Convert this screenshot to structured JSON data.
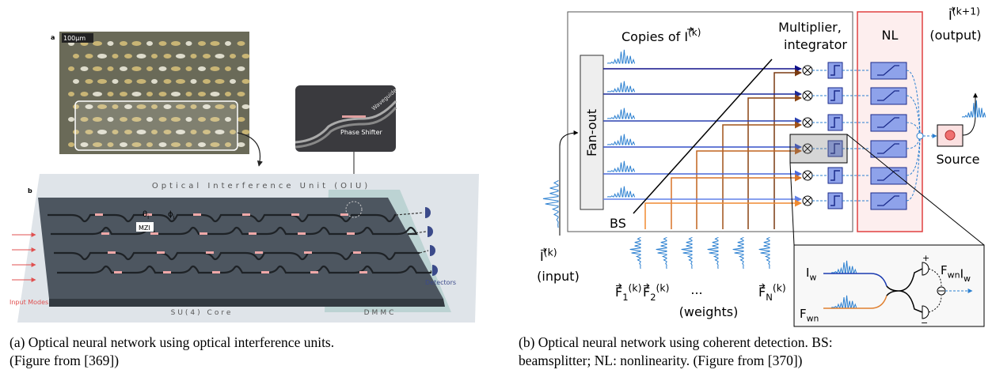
{
  "panel_a": {
    "label_a": "a",
    "scale": "100μm",
    "label_b": "b",
    "oiu_title": "Optical Interference Unit (OIU)",
    "theta": {
      "symbol": "θ",
      "subscript": "i"
    },
    "phi": {
      "symbol": "ϕ",
      "subscript": "i"
    },
    "mzi": "MZI",
    "phase_shifter": "Phase Shifter",
    "waveguide": "Waveguide",
    "detectors": "Detectors",
    "input_modes": "Input Modes",
    "core": "SU(4) Core",
    "dmmc": "DMMC",
    "caption": [
      "(a) Optical neural network using optical interference units.",
      "(Figure from [369])"
    ]
  },
  "panel_b": {
    "copies": {
      "text": "Copies of ",
      "symbol": "I",
      "superscript": "(k)"
    },
    "multiplier": [
      "Multiplier,",
      "integrator"
    ],
    "nl": "NL",
    "output": {
      "symbol": "I",
      "superscript": "(k+1)",
      "note": "(output)"
    },
    "fan_out": "Fan-out",
    "bs": "BS",
    "source": "Source",
    "input": {
      "symbol": "I",
      "superscript": "(k)",
      "note": "(input)"
    },
    "weights": [
      {
        "symbol": "F",
        "subscript": "1",
        "superscript": "(k)"
      },
      {
        "symbol": "F",
        "subscript": "2",
        "superscript": "(k)"
      },
      {
        "symbol": "F",
        "subscript": "N",
        "superscript": "(k)"
      }
    ],
    "ellipsis": "...",
    "weights_note": "(weights)",
    "inset": {
      "iw": {
        "symbol": "I",
        "subscript": "w"
      },
      "fwn": {
        "symbol": "F",
        "subscript": "wn"
      },
      "product": [
        {
          "symbol": "F",
          "subscript": "wn"
        },
        {
          "symbol": "I",
          "subscript": "w"
        }
      ],
      "plus": "+",
      "minus": "−"
    },
    "caption": [
      "(b) Optical neural network using coherent detection.  BS:",
      "beamsplitter; NL: nonlinearity. (Figure from [370])"
    ]
  }
}
